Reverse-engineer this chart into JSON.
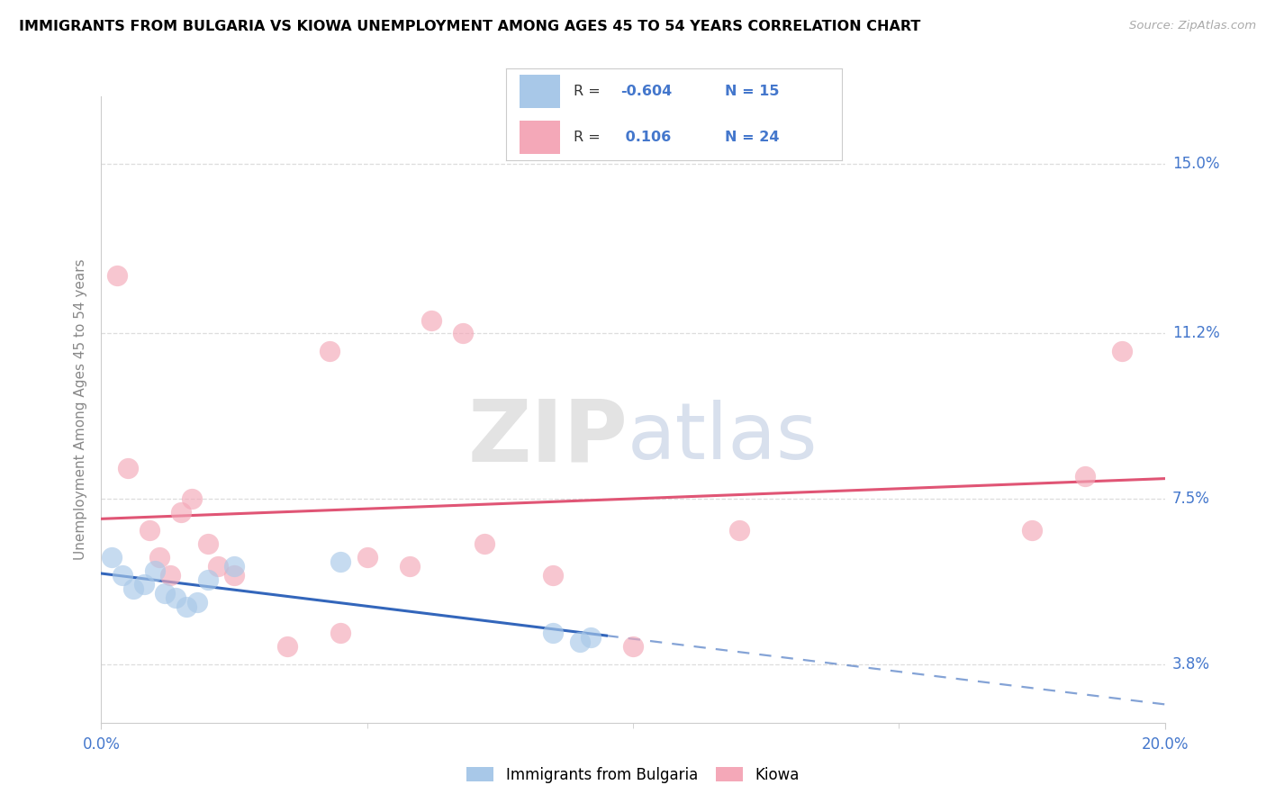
{
  "title": "IMMIGRANTS FROM BULGARIA VS KIOWA UNEMPLOYMENT AMONG AGES 45 TO 54 YEARS CORRELATION CHART",
  "source_text": "Source: ZipAtlas.com",
  "ylabel": "Unemployment Among Ages 45 to 54 years",
  "xlim": [
    0.0,
    20.0
  ],
  "ylim": [
    2.5,
    16.5
  ],
  "ytick_labels": [
    "3.8%",
    "7.5%",
    "11.2%",
    "15.0%"
  ],
  "ytick_values": [
    3.8,
    7.5,
    11.2,
    15.0
  ],
  "blue_R": -0.604,
  "blue_N": 15,
  "pink_R": 0.106,
  "pink_N": 24,
  "blue_label": "Immigrants from Bulgaria",
  "pink_label": "Kiowa",
  "blue_color": "#A8C8E8",
  "blue_line_color": "#3366BB",
  "pink_color": "#F4A8B8",
  "pink_line_color": "#E05575",
  "blue_scatter_x": [
    0.2,
    0.4,
    0.6,
    0.8,
    1.0,
    1.2,
    1.4,
    1.6,
    1.8,
    2.0,
    2.5,
    4.5,
    8.5,
    9.0,
    9.2
  ],
  "blue_scatter_y": [
    6.2,
    5.8,
    5.5,
    5.6,
    5.9,
    5.4,
    5.3,
    5.1,
    5.2,
    5.7,
    6.0,
    6.1,
    4.5,
    4.3,
    4.4
  ],
  "pink_scatter_x": [
    0.3,
    0.5,
    0.9,
    1.1,
    1.3,
    1.5,
    1.7,
    2.0,
    2.2,
    2.5,
    3.5,
    4.3,
    4.5,
    5.0,
    5.8,
    6.2,
    6.8,
    7.2,
    8.5,
    10.0,
    12.0,
    17.5,
    18.5,
    19.2
  ],
  "pink_scatter_y": [
    12.5,
    8.2,
    6.8,
    6.2,
    5.8,
    7.2,
    7.5,
    6.5,
    6.0,
    5.8,
    4.2,
    10.8,
    4.5,
    6.2,
    6.0,
    11.5,
    11.2,
    6.5,
    5.8,
    4.2,
    6.8,
    6.8,
    8.0,
    10.8
  ],
  "background_color": "#FFFFFF",
  "grid_color": "#DDDDDD",
  "right_label_color": "#4477CC",
  "axis_color": "#CCCCCC",
  "ylabel_color": "#888888"
}
